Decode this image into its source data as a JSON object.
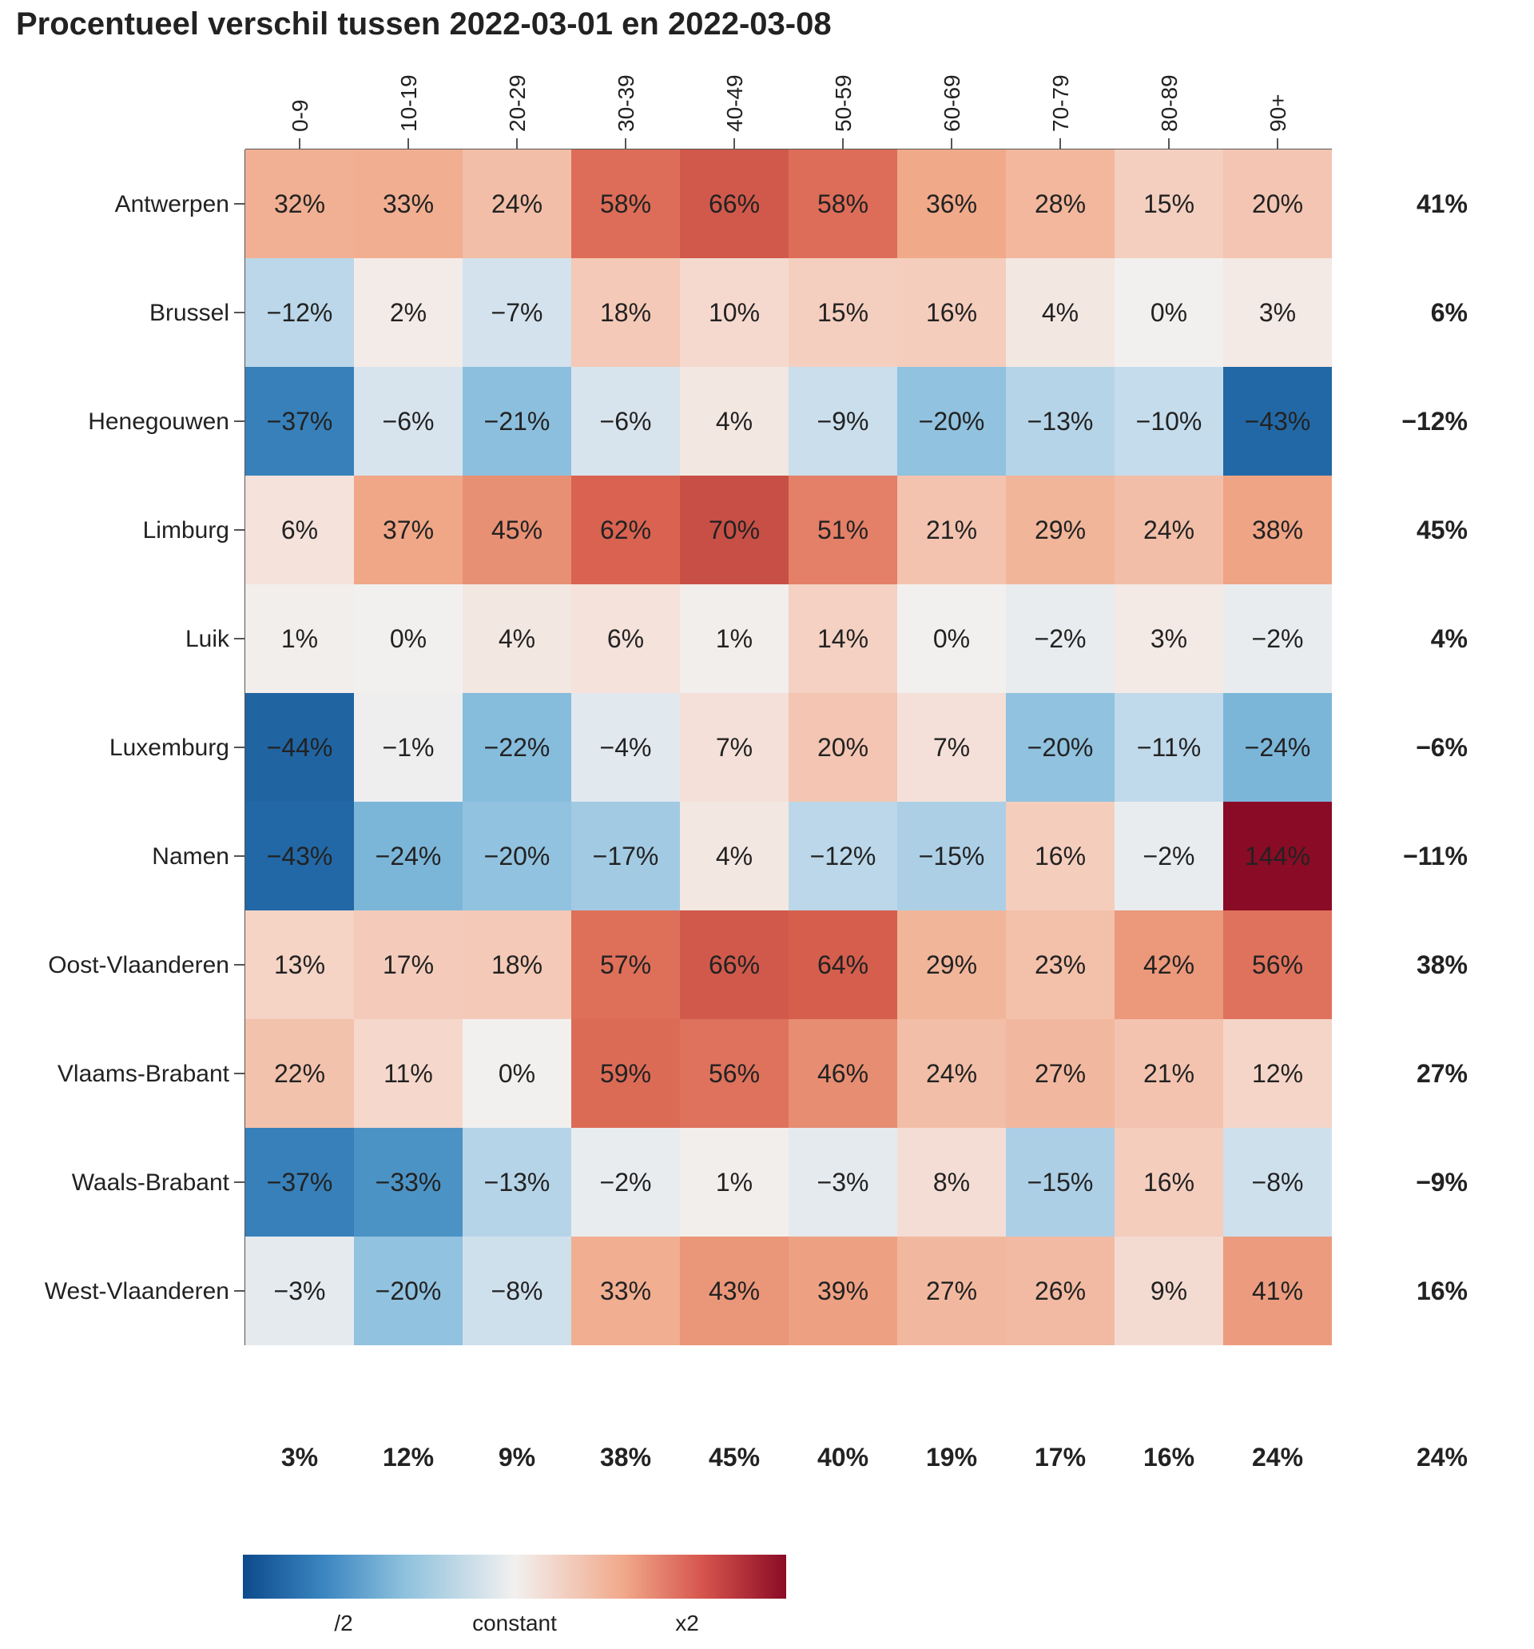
{
  "chart_data": {
    "type": "heatmap",
    "title": "Procentueel verschil tussen 2022-03-01 en 2022-03-08",
    "columns": [
      "0-9",
      "10-19",
      "20-29",
      "30-39",
      "40-49",
      "50-59",
      "60-69",
      "70-79",
      "80-89",
      "90+"
    ],
    "rows": [
      "Antwerpen",
      "Brussel",
      "Henegouwen",
      "Limburg",
      "Luik",
      "Luxemburg",
      "Namen",
      "Oost-Vlaanderen",
      "Vlaams-Brabant",
      "Waals-Brabant",
      "West-Vlaanderen"
    ],
    "values": [
      [
        32,
        33,
        24,
        58,
        66,
        58,
        36,
        28,
        15,
        20
      ],
      [
        -12,
        2,
        -7,
        18,
        10,
        15,
        16,
        4,
        0,
        3
      ],
      [
        -37,
        -6,
        -21,
        -6,
        4,
        -9,
        -20,
        -13,
        -10,
        -43
      ],
      [
        6,
        37,
        45,
        62,
        70,
        51,
        21,
        29,
        24,
        38
      ],
      [
        1,
        0,
        4,
        6,
        1,
        14,
        0,
        -2,
        3,
        -2
      ],
      [
        -44,
        -1,
        -22,
        -4,
        7,
        20,
        7,
        -20,
        -11,
        -24
      ],
      [
        -43,
        -24,
        -20,
        -17,
        4,
        -12,
        -15,
        16,
        -2,
        144
      ],
      [
        13,
        17,
        18,
        57,
        66,
        64,
        29,
        23,
        42,
        56
      ],
      [
        22,
        11,
        0,
        59,
        56,
        46,
        24,
        27,
        21,
        12
      ],
      [
        -37,
        -33,
        -13,
        -2,
        1,
        -3,
        8,
        -15,
        16,
        -8
      ],
      [
        -3,
        -20,
        -8,
        33,
        43,
        39,
        27,
        26,
        9,
        41
      ]
    ],
    "row_totals": [
      41,
      6,
      -12,
      45,
      4,
      -6,
      -11,
      38,
      27,
      -9,
      16
    ],
    "column_totals": [
      3,
      12,
      9,
      38,
      45,
      40,
      19,
      17,
      16,
      24
    ],
    "grand_total": 24,
    "unit": "%",
    "color_scale": {
      "scheme": "diverging blue-white-red",
      "domain": [
        -50,
        0,
        100
      ],
      "colors": [
        "#0d4a8c",
        "#f2f0ef",
        "#8a0b25"
      ],
      "tick_labels": [
        "/2",
        "constant",
        "x2"
      ]
    }
  }
}
